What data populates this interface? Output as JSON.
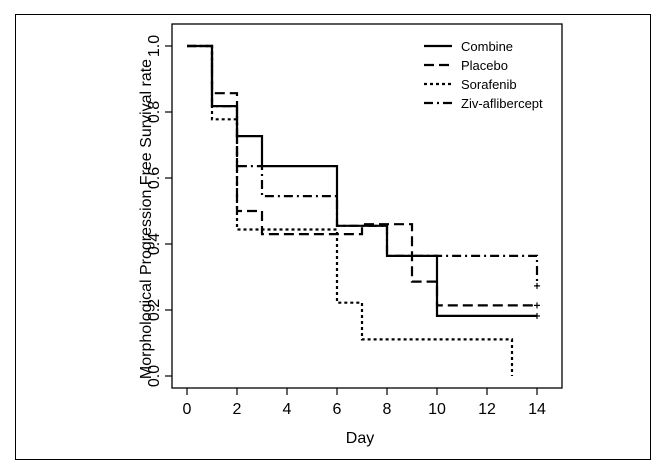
{
  "chart_data": {
    "type": "line",
    "step": true,
    "xlabel": "Day",
    "ylabel": "Morphological Progression Free Survival rate",
    "xlim": [
      0,
      14
    ],
    "ylim": [
      0,
      1.0
    ],
    "x_ticks": [
      "0",
      "2",
      "4",
      "6",
      "8",
      "10",
      "12",
      "14"
    ],
    "y_ticks": [
      "0.0",
      "0.2",
      "0.4",
      "0.6",
      "0.8",
      "1.0"
    ],
    "grid": false,
    "legend_position": "top-right",
    "series": [
      {
        "name": "Combine",
        "dash": "solid",
        "points": [
          [
            0,
            1.0
          ],
          [
            1,
            1.0
          ],
          [
            1,
            0.818
          ],
          [
            2,
            0.818
          ],
          [
            2,
            0.727
          ],
          [
            3,
            0.727
          ],
          [
            3,
            0.636
          ],
          [
            6,
            0.636
          ],
          [
            6,
            0.455
          ],
          [
            8,
            0.455
          ],
          [
            8,
            0.364
          ],
          [
            10,
            0.364
          ],
          [
            10,
            0.182
          ],
          [
            14,
            0.182
          ]
        ],
        "censor": [
          [
            14,
            0.182
          ]
        ]
      },
      {
        "name": "Placebo",
        "dash": "long-dash",
        "points": [
          [
            0,
            1.0
          ],
          [
            1,
            1.0
          ],
          [
            1,
            0.857
          ],
          [
            2,
            0.857
          ],
          [
            2,
            0.5
          ],
          [
            3,
            0.5
          ],
          [
            3,
            0.43
          ],
          [
            7,
            0.43
          ],
          [
            7,
            0.46
          ],
          [
            9,
            0.46
          ],
          [
            9,
            0.286
          ],
          [
            10,
            0.286
          ],
          [
            10,
            0.214
          ],
          [
            14,
            0.214
          ]
        ],
        "censor": [
          [
            14,
            0.214
          ]
        ]
      },
      {
        "name": "Sorafenib",
        "dash": "short-dash",
        "points": [
          [
            0,
            1.0
          ],
          [
            1,
            1.0
          ],
          [
            1,
            0.778
          ],
          [
            2,
            0.778
          ],
          [
            2,
            0.444
          ],
          [
            6,
            0.444
          ],
          [
            6,
            0.222
          ],
          [
            7,
            0.222
          ],
          [
            7,
            0.111
          ],
          [
            13,
            0.111
          ],
          [
            13,
            0.0
          ]
        ],
        "censor": []
      },
      {
        "name": "Ziv-aflibercept",
        "dash": "dash-dot",
        "points": [
          [
            0,
            1.0
          ],
          [
            1,
            1.0
          ],
          [
            1,
            0.818
          ],
          [
            2,
            0.818
          ],
          [
            2,
            0.636
          ],
          [
            3,
            0.636
          ],
          [
            3,
            0.545
          ],
          [
            6,
            0.545
          ],
          [
            6,
            0.455
          ],
          [
            8,
            0.455
          ],
          [
            8,
            0.364
          ],
          [
            14,
            0.364
          ],
          [
            14,
            0.273
          ]
        ],
        "censor": [
          [
            14,
            0.273
          ]
        ]
      }
    ]
  }
}
